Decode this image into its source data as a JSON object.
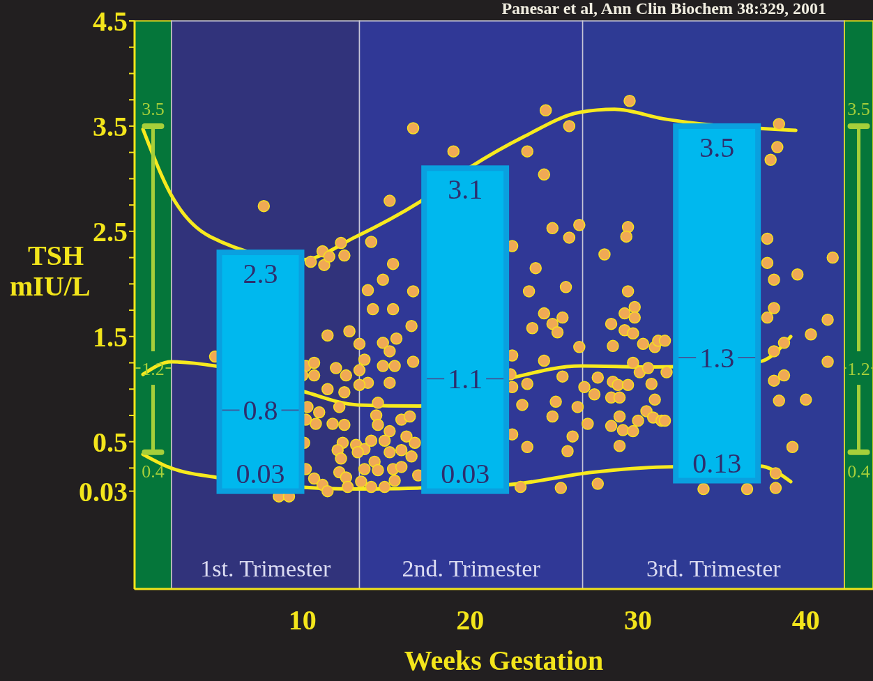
{
  "chart_data": {
    "type": "scatter",
    "xlabel": "Weeks Gestation",
    "ylabel": "TSH mIU/L",
    "xlim": [
      0,
      44
    ],
    "xticks": [
      10,
      20,
      30,
      40
    ],
    "ylim": [
      -0.9,
      4.5
    ],
    "yticks": [
      0.03,
      {
        "value": 0.25,
        "label": null
      },
      0.5,
      {
        "value": 0.75,
        "label": null
      },
      {
        "value": 1,
        "label": null
      },
      {
        "value": 1.25,
        "label": null
      },
      1.5,
      {
        "value": 1.75,
        "label": null
      },
      {
        "value": 2,
        "label": null
      },
      {
        "value": 2.25,
        "label": null
      },
      2.5,
      {
        "value": 2.75,
        "label": null
      },
      {
        "value": 3,
        "label": null
      },
      {
        "value": 3.25,
        "label": null
      },
      3.5,
      {
        "value": 3.75,
        "label": null
      },
      {
        "value": 4,
        "label": null
      },
      {
        "value": 4.25,
        "label": null
      },
      4.5
    ],
    "annotations": [
      "Panesar et al, Ann Clin Biochem 38:329, 2001",
      {
        "text": "2.3",
        "x": 7.5,
        "y": 2.3
      },
      {
        "text": "0.8",
        "x": 7.5,
        "y": 0.8
      },
      {
        "text": "0.03",
        "x": 7.5,
        "y": 0.03
      },
      {
        "text": "3.1",
        "x": 19.7,
        "y": 3.1
      },
      {
        "text": "1.1",
        "x": 19.7,
        "y": 1.1
      },
      {
        "text": "0.03",
        "x": 19.7,
        "y": 0.03
      },
      {
        "text": "3.5",
        "x": 34.7,
        "y": 3.5
      },
      {
        "text": "1.3",
        "x": 34.7,
        "y": 1.3
      },
      {
        "text": "0.13",
        "x": 34.7,
        "y": 0.13
      }
    ],
    "ref_lines": [
      {
        "axis": "y",
        "value": 3.5,
        "label": "3.5",
        "color": "#a6cf3a"
      },
      {
        "axis": "y",
        "value": 1.2,
        "label": "1.2",
        "color": "#a6cf3a"
      },
      {
        "axis": "y",
        "value": 0.4,
        "label": "0.4",
        "color": "#a6cf3a"
      }
    ],
    "bands": [
      {
        "axis": "x",
        "from": 0,
        "to": 2.2,
        "color": "#05763a"
      },
      {
        "axis": "x",
        "from": 2.2,
        "to": 13.4,
        "label": "1st. Trimester",
        "color": "#31337b"
      },
      {
        "axis": "x",
        "from": 13.4,
        "to": 26.7,
        "label": "2nd. Trimester",
        "color": "#303896"
      },
      {
        "axis": "x",
        "from": 26.7,
        "to": 42.3,
        "label": "3rd. Trimester",
        "color": "#2e3a94"
      },
      {
        "axis": "x",
        "from": 42.3,
        "to": 44,
        "color": "#05763a"
      }
    ],
    "series": [
      {
        "type": "line",
        "color": "#f7ea1e",
        "x": [
          0.5,
          2.2,
          4.5,
          10,
          13.2,
          17,
          20,
          23.2,
          26.5,
          28.6,
          31.5,
          39.4
        ],
        "values": [
          3.47,
          2.84,
          2.45,
          2.23,
          2.45,
          2.78,
          3.11,
          3.4,
          3.63,
          3.66,
          3.57,
          3.46
        ]
      },
      {
        "type": "line",
        "color": "#f7ea1e",
        "x": [
          0.5,
          2.2,
          4.8,
          10,
          13.3,
          17,
          22.3,
          26.6,
          30.8,
          37.2,
          39.1
        ],
        "values": [
          1.14,
          1.26,
          1.22,
          0.98,
          0.85,
          0.84,
          1.1,
          1.22,
          1.21,
          1.26,
          1.5
        ]
      },
      {
        "type": "line",
        "color": "#f7ea1e",
        "x": [
          0.5,
          2.0,
          4.9,
          13.3,
          17,
          22.2,
          27.3,
          31.5,
          37.2,
          39.1
        ],
        "values": [
          0.38,
          0.26,
          0.16,
          0.05,
          0.06,
          0.09,
          0.21,
          0.26,
          0.27,
          0.12
        ]
      },
      {
        "type": "box",
        "color": "#00b8ee",
        "x": [
          7.5,
          19.7,
          34.7
        ],
        "boxes": [
          {
            "low": 0.03,
            "q1": 0.03,
            "median": 0.8,
            "q3": 2.3,
            "high": 2.3
          },
          {
            "low": 0.03,
            "q1": 0.03,
            "median": 1.1,
            "q3": 3.1,
            "high": 3.1
          },
          {
            "low": 0.13,
            "q1": 0.13,
            "median": 1.3,
            "q3": 3.5,
            "high": 3.5
          }
        ]
      },
      {
        "color": "#f0a955",
        "marker": "circle",
        "x": [
          7.7,
          10.5,
          11.2,
          11.3,
          11.6,
          12.3,
          12.5,
          14.1,
          15.2,
          15.4,
          14.8,
          13.9,
          14.2,
          15.4,
          16.6,
          16.5,
          11.5,
          12.8,
          13.4,
          14.8,
          15.6,
          15.2,
          10.2,
          10.7,
          10.7,
          10.0,
          12.0,
          12.6,
          13.4,
          13.7,
          13.9,
          13.4,
          11.5,
          12.5,
          14.8,
          15.5,
          15.2,
          16.6,
          10.3,
          11.0,
          10.2,
          10.8,
          11.8,
          12.5,
          12.2,
          14.5,
          14.4,
          14.5,
          15.9,
          16.4,
          15.2,
          10.1,
          12.4,
          12.1,
          13.2,
          13.7,
          14.1,
          14.9,
          16.2,
          16.7,
          12.3,
          13.3,
          15.2,
          15.9,
          16.5,
          14.3,
          14.5,
          15.4,
          15.9,
          10.2,
          12.2,
          12.6,
          13.7,
          16.9,
          10.7,
          11.2,
          11.5,
          12.7,
          13.5,
          14.1,
          14.9,
          15.5,
          8.6,
          9.2,
          4.8,
          19.0,
          24.5,
          25.9,
          29.5,
          23.4,
          24.4,
          22.5,
          24.9,
          25.9,
          26.5,
          29.4,
          29.3,
          28.0,
          23.9,
          23.5,
          25.7,
          29.4,
          24.4,
          25.5,
          24.9,
          25.2,
          23.7,
          28.4,
          29.2,
          29.8,
          29.8,
          29.2,
          29.7,
          30.3,
          31.0,
          31.2,
          26.5,
          28.5,
          22.5,
          24.4,
          29.7,
          30.1,
          30.6,
          31.7,
          22.4,
          22.5,
          23.4,
          25.5,
          27.6,
          26.8,
          27.4,
          28.5,
          28.8,
          29.4,
          30.8,
          31.0,
          23.1,
          25.1,
          26.4,
          28.4,
          28.9,
          24.9,
          27.0,
          28.9,
          28.4,
          29.1,
          29.7,
          30.0,
          30.5,
          30.9,
          31.4,
          22.5,
          26.1,
          23.4,
          25.8,
          28.9,
          23.0,
          25.4,
          27.6,
          16.6,
          38.4,
          38.3,
          37.9,
          37.7,
          37.7,
          38.1,
          39.5,
          41.6,
          38.1,
          37.7,
          41.3,
          40.3,
          41.3,
          38.7,
          38.1,
          38.1,
          38.7,
          38.4,
          40.0,
          39.2,
          36.5,
          38.2,
          38.2,
          33.9,
          31.6,
          31.6
        ],
        "values": [
          2.74,
          2.21,
          2.31,
          2.18,
          2.26,
          2.39,
          2.27,
          2.4,
          2.79,
          2.19,
          2.04,
          1.94,
          1.76,
          1.76,
          1.93,
          1.6,
          1.51,
          1.55,
          1.43,
          1.44,
          1.48,
          1.36,
          1.22,
          1.25,
          1.13,
          1.13,
          1.2,
          1.13,
          1.18,
          1.28,
          1.06,
          1.04,
          1.0,
          0.97,
          1.22,
          1.22,
          1.06,
          1.26,
          0.83,
          0.78,
          0.71,
          0.67,
          0.67,
          0.66,
          0.83,
          0.87,
          0.75,
          0.66,
          0.71,
          0.74,
          0.6,
          0.49,
          0.49,
          0.42,
          0.47,
          0.43,
          0.51,
          0.51,
          0.55,
          0.49,
          0.34,
          0.4,
          0.4,
          0.42,
          0.36,
          0.31,
          0.23,
          0.24,
          0.26,
          0.24,
          0.21,
          0.16,
          0.24,
          0.18,
          0.15,
          0.09,
          0.03,
          0.07,
          0.12,
          0.07,
          0.07,
          0.13,
          -0.02,
          -0.02,
          1.31,
          3.26,
          3.65,
          3.5,
          3.74,
          3.26,
          3.04,
          2.36,
          2.53,
          2.44,
          2.56,
          2.54,
          2.45,
          2.28,
          2.15,
          1.93,
          1.97,
          1.93,
          1.72,
          1.68,
          1.62,
          1.54,
          1.58,
          1.62,
          1.72,
          1.78,
          1.68,
          1.56,
          1.53,
          1.43,
          1.4,
          1.46,
          1.4,
          1.41,
          1.32,
          1.27,
          1.25,
          1.16,
          1.2,
          1.16,
          1.14,
          1.02,
          1.05,
          1.12,
          1.11,
          1.02,
          0.95,
          1.07,
          1.04,
          1.04,
          1.05,
          0.9,
          0.85,
          0.88,
          0.83,
          0.92,
          0.92,
          0.74,
          0.67,
          0.74,
          0.65,
          0.61,
          0.6,
          0.7,
          0.79,
          0.73,
          0.7,
          0.57,
          0.55,
          0.45,
          0.41,
          0.46,
          0.07,
          0.06,
          0.1,
          3.48,
          3.52,
          3.3,
          3.18,
          2.43,
          2.2,
          2.04,
          2.09,
          2.25,
          1.77,
          1.68,
          1.66,
          1.52,
          1.26,
          1.44,
          1.36,
          1.08,
          1.13,
          0.89,
          0.9,
          0.45,
          0.05,
          0.2,
          0.06,
          0.05,
          1.46,
          0.7
        ]
      }
    ]
  }
}
